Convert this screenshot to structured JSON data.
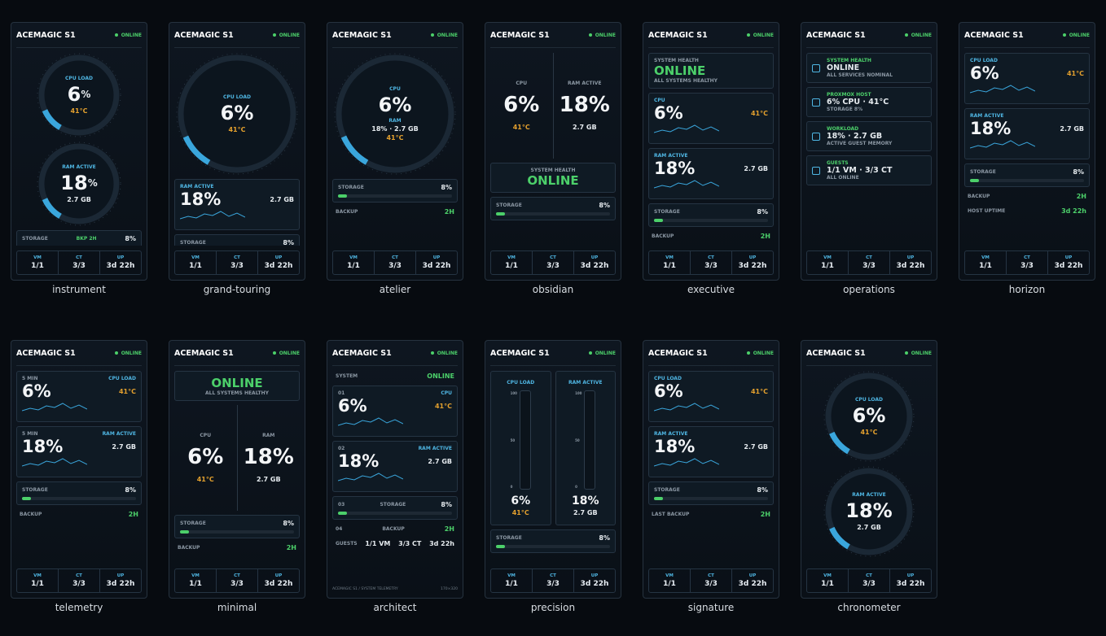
{
  "panels": [
    {
      "caption": "instrument",
      "title": "ACEMAGIC S1",
      "status": "ONLINE",
      "blocks": [
        {
          "kind": "gauge",
          "label": "CPU LOAD",
          "value": "6",
          "unit": "%",
          "sub": "41°C"
        },
        {
          "kind": "gauge",
          "label": "RAM ACTIVE",
          "value": "18",
          "unit": "%",
          "sub": "2.7 GB"
        },
        {
          "kind": "bar",
          "label": "STORAGE",
          "note": "BKP 2H",
          "value": "8%"
        }
      ],
      "footer": [
        {
          "label": "VM",
          "value": "1/1"
        },
        {
          "label": "CT",
          "value": "3/3"
        },
        {
          "label": "UP",
          "value": "3d 22h"
        }
      ]
    },
    {
      "caption": "grand-touring",
      "title": "ACEMAGIC S1",
      "status": "ONLINE",
      "blocks": [
        {
          "kind": "gauge",
          "label": "CPU LOAD",
          "value": "6%",
          "sub": "41°C"
        },
        {
          "kind": "card",
          "label": "RAM ACTIVE",
          "value": "18%",
          "sub": "2.7 GB"
        },
        {
          "kind": "bar",
          "label": "STORAGE",
          "value": "8%"
        }
      ],
      "footer": [
        {
          "label": "VM",
          "value": "1/1"
        },
        {
          "label": "CT",
          "value": "3/3"
        },
        {
          "label": "UP",
          "value": "3d 22h"
        }
      ]
    },
    {
      "caption": "atelier",
      "title": "ACEMAGIC S1",
      "status": "ONLINE",
      "blocks": [
        {
          "kind": "gauge",
          "label": "CPU",
          "value": "6%",
          "note": "RAM",
          "sub": "18% · 2.7 GB",
          "extra": "41°C"
        },
        {
          "kind": "bar",
          "label": "STORAGE",
          "value": "8%"
        },
        {
          "kind": "kv",
          "label": "BACKUP",
          "value": "2H"
        }
      ],
      "footer": [
        {
          "label": "VM",
          "value": "1/1"
        },
        {
          "label": "CT",
          "value": "3/3"
        },
        {
          "label": "UP",
          "value": "3d 22h"
        }
      ]
    },
    {
      "caption": "obsidian",
      "title": "ACEMAGIC S1",
      "status": "ONLINE",
      "blocks": [
        {
          "kind": "cols",
          "cols": [
            {
              "label": "CPU",
              "value": "6%",
              "sub": "41°C"
            },
            {
              "label": "RAM ACTIVE",
              "value": "18%",
              "sub": "2.7 GB"
            }
          ]
        },
        {
          "kind": "status",
          "label": "SYSTEM HEALTH",
          "value": "ONLINE"
        },
        {
          "kind": "bar",
          "label": "STORAGE",
          "value": "8%"
        }
      ],
      "footer": [
        {
          "label": "VM",
          "value": "1/1"
        },
        {
          "label": "CT",
          "value": "3/3"
        },
        {
          "label": "UP",
          "value": "3d 22h"
        }
      ]
    },
    {
      "caption": "executive",
      "title": "ACEMAGIC S1",
      "status": "ONLINE",
      "blocks": [
        {
          "kind": "status",
          "label": "SYSTEM HEALTH",
          "value": "ONLINE",
          "sub": "ALL SYSTEMS HEALTHY"
        },
        {
          "kind": "card",
          "label": "CPU",
          "value": "6%",
          "sub": "41°C"
        },
        {
          "kind": "card",
          "label": "RAM ACTIVE",
          "value": "18%",
          "sub": "2.7 GB"
        },
        {
          "kind": "bar",
          "label": "STORAGE",
          "value": "8%"
        },
        {
          "kind": "kv",
          "label": "BACKUP",
          "value": "2H"
        }
      ],
      "footer": [
        {
          "label": "VM",
          "value": "1/1"
        },
        {
          "label": "CT",
          "value": "3/3"
        },
        {
          "label": "UP",
          "value": "3d 22h"
        }
      ]
    },
    {
      "caption": "operations",
      "title": "ACEMAGIC S1",
      "status": "ONLINE",
      "blocks": [
        {
          "kind": "item",
          "label": "SYSTEM HEALTH",
          "value": "ONLINE",
          "sub": "ALL SERVICES NOMINAL"
        },
        {
          "kind": "item",
          "label": "PROXMOX HOST",
          "value": "6% CPU · 41°C",
          "sub": "STORAGE 8%"
        },
        {
          "kind": "item",
          "label": "WORKLOAD",
          "value": "18% · 2.7 GB",
          "sub": "ACTIVE GUEST MEMORY"
        },
        {
          "kind": "item",
          "label": "GUESTS",
          "value": "1/1 VM · 3/3 CT",
          "sub": "ALL ONLINE"
        }
      ],
      "footer": [
        {
          "label": "VM",
          "value": "1/1"
        },
        {
          "label": "CT",
          "value": "3/3"
        },
        {
          "label": "UP",
          "value": "3d 22h"
        }
      ]
    },
    {
      "caption": "horizon",
      "title": "ACEMAGIC S1",
      "status": "ONLINE",
      "blocks": [
        {
          "kind": "card",
          "label": "CPU LOAD",
          "value": "6%",
          "sub": "41°C"
        },
        {
          "kind": "card",
          "label": "RAM ACTIVE",
          "value": "18%",
          "sub": "2.7 GB"
        },
        {
          "kind": "bar",
          "label": "STORAGE",
          "value": "8%"
        },
        {
          "kind": "kv",
          "label": "BACKUP",
          "value": "2H"
        },
        {
          "kind": "kv",
          "label": "HOST UPTIME",
          "value": "3d 22h"
        }
      ],
      "footer": [
        {
          "label": "VM",
          "value": "1/1"
        },
        {
          "label": "CT",
          "value": "3/3"
        },
        {
          "label": "UP",
          "value": "3d 22h"
        }
      ]
    },
    {
      "caption": "telemetry",
      "title": "ACEMAGIC S1",
      "status": "ONLINE",
      "blocks": [
        {
          "kind": "card",
          "label": "CPU LOAD",
          "value": "6%",
          "sub": "41°C",
          "note": "5 MIN"
        },
        {
          "kind": "card",
          "label": "RAM ACTIVE",
          "value": "18%",
          "sub": "2.7 GB",
          "note": "5 MIN"
        },
        {
          "kind": "bar",
          "label": "STORAGE",
          "value": "8%"
        },
        {
          "kind": "kv",
          "label": "BACKUP",
          "value": "2H"
        }
      ],
      "footer": [
        {
          "label": "VM",
          "value": "1/1"
        },
        {
          "label": "CT",
          "value": "3/3"
        },
        {
          "label": "UP",
          "value": "3d 22h"
        }
      ]
    },
    {
      "caption": "minimal",
      "title": "ACEMAGIC S1",
      "status": "ONLINE",
      "blocks": [
        {
          "kind": "status",
          "value": "ONLINE",
          "sub": "ALL SYSTEMS HEALTHY"
        },
        {
          "kind": "cols",
          "cols": [
            {
              "label": "CPU",
              "value": "6%",
              "sub": "41°C"
            },
            {
              "label": "RAM",
              "value": "18%",
              "sub": "2.7 GB"
            }
          ]
        },
        {
          "kind": "bar",
          "label": "STORAGE",
          "value": "8%"
        },
        {
          "kind": "kv",
          "label": "BACKUP",
          "value": "2H"
        }
      ],
      "footer": [
        {
          "label": "VM",
          "value": "1/1"
        },
        {
          "label": "CT",
          "value": "3/3"
        },
        {
          "label": "UP",
          "value": "3d 22h"
        }
      ]
    },
    {
      "caption": "architect",
      "title": "ACEMAGIC S1",
      "status": "ONLINE",
      "blocks": [
        {
          "kind": "kv",
          "label": "SYSTEM",
          "value": "ONLINE"
        },
        {
          "kind": "card",
          "note": "01",
          "label": "CPU",
          "sub": "41°C",
          "value": "6%"
        },
        {
          "kind": "card",
          "note": "02",
          "label": "RAM ACTIVE",
          "value": "18%",
          "sub": "2.7 GB"
        },
        {
          "kind": "bar",
          "note": "03",
          "label": "STORAGE",
          "value": "8%"
        },
        {
          "kind": "kv",
          "note": "04",
          "label": "BACKUP",
          "value": "2H"
        },
        {
          "kind": "kv",
          "label": "GUESTS",
          "value": "1/1 VM",
          "sub": "3/3 CT",
          "extra": "3d 22h"
        }
      ],
      "footer_text": [
        "ACEMAGIC S1 / SYSTEM TELEMETRY",
        "170×320"
      ]
    },
    {
      "caption": "precision",
      "title": "ACEMAGIC S1",
      "status": "ONLINE",
      "blocks": [
        {
          "kind": "tubes",
          "scale": [
            "100",
            "50",
            "0"
          ],
          "cols": [
            {
              "label": "CPU LOAD",
              "value": "6%",
              "sub": "41°C"
            },
            {
              "label": "RAM ACTIVE",
              "value": "18%",
              "sub": "2.7 GB"
            }
          ]
        },
        {
          "kind": "bar",
          "label": "STORAGE",
          "value": "8%"
        }
      ],
      "footer": [
        {
          "label": "VM",
          "value": "1/1"
        },
        {
          "label": "CT",
          "value": "3/3"
        },
        {
          "label": "UP",
          "value": "3d 22h"
        }
      ]
    },
    {
      "caption": "signature",
      "title": "ACEMAGIC S1",
      "status": "ONLINE",
      "blocks": [
        {
          "kind": "card",
          "label": "CPU LOAD",
          "value": "6%",
          "sub": "41°C"
        },
        {
          "kind": "card",
          "label": "RAM ACTIVE",
          "value": "18%",
          "sub": "2.7 GB"
        },
        {
          "kind": "bar",
          "label": "STORAGE",
          "value": "8%"
        },
        {
          "kind": "kv",
          "label": "LAST BACKUP",
          "value": "2H"
        }
      ],
      "footer": [
        {
          "label": "VM",
          "value": "1/1"
        },
        {
          "label": "CT",
          "value": "3/3"
        },
        {
          "label": "UP",
          "value": "3d 22h"
        }
      ]
    },
    {
      "caption": "chronometer",
      "title": "ACEMAGIC S1",
      "status": "ONLINE",
      "blocks": [
        {
          "kind": "gauge",
          "label": "CPU LOAD",
          "value": "6%",
          "sub": "41°C"
        },
        {
          "kind": "gauge",
          "label": "RAM ACTIVE",
          "value": "18%",
          "sub": "2.7 GB"
        }
      ],
      "footer": [
        {
          "label": "VM",
          "value": "1/1"
        },
        {
          "label": "CT",
          "value": "3/3"
        },
        {
          "label": "UP",
          "value": "3d 22h"
        }
      ]
    }
  ]
}
